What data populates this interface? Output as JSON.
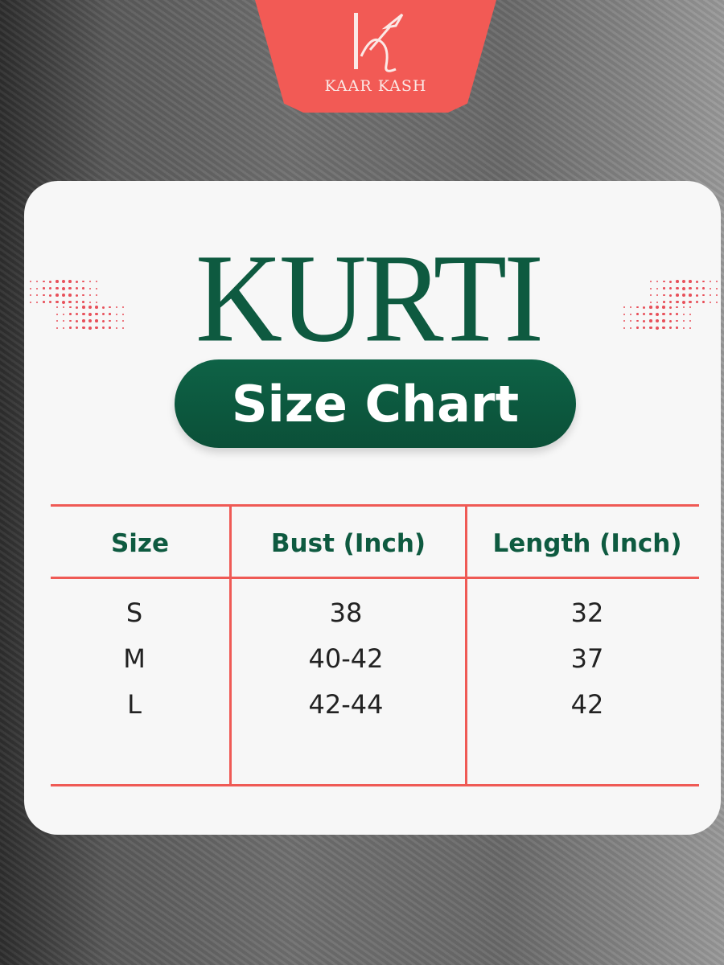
{
  "brand": {
    "name": "KAAR KASH",
    "color": "#f25a55"
  },
  "title": "KURTI",
  "subtitle": "Size Chart",
  "colors": {
    "accent_green": "#0e5a40",
    "accent_coral": "#ef5a55"
  },
  "table": {
    "headers": [
      "Size",
      "Bust (Inch)",
      "Length (Inch)"
    ],
    "rows": [
      [
        "S",
        "38",
        "32"
      ],
      [
        "M",
        "40-42",
        "37"
      ],
      [
        "L",
        "42-44",
        "42"
      ]
    ]
  }
}
